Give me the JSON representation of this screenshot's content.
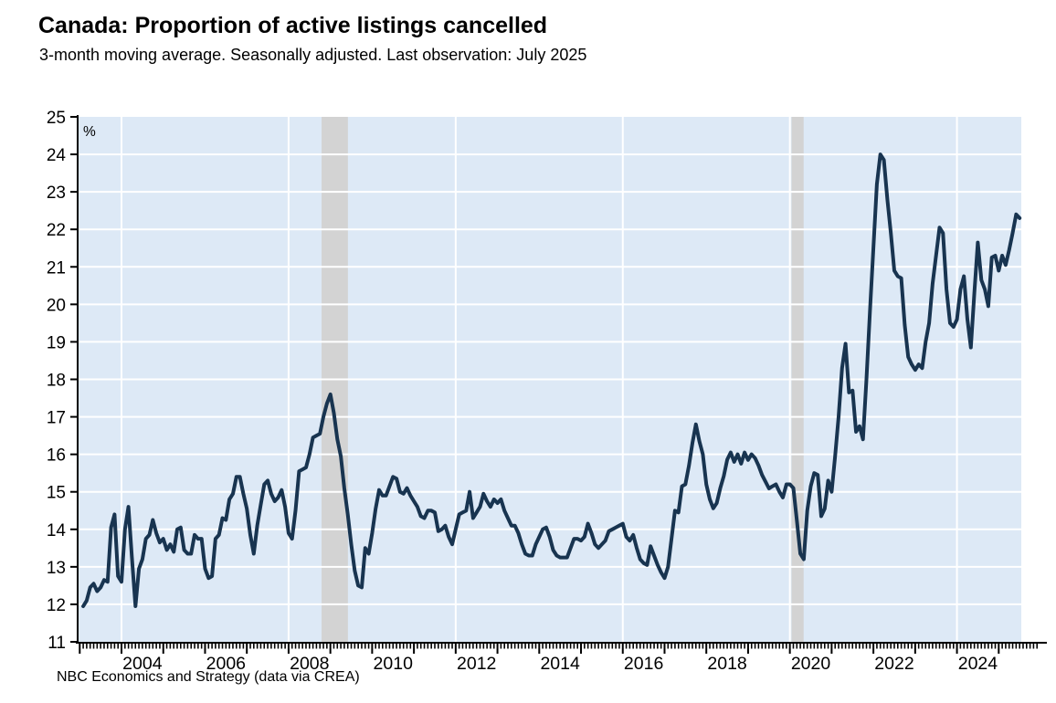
{
  "header": {
    "title": "Canada: Proportion of active listings cancelled",
    "subtitle": "3-month moving average. Seasonally adjusted. Last observation: July 2025"
  },
  "footer": {
    "source": "NBC Economics and Strategy (data via CREA)"
  },
  "chart_data": {
    "type": "line",
    "title": "Canada: Proportion of active listings cancelled",
    "subtitle": "3-month moving average. Seasonally adjusted. Last observation: July 2025",
    "unit_label": "%",
    "ylim": [
      11,
      25
    ],
    "ytick_step": 1,
    "xlim": [
      2002.95,
      2025.54
    ],
    "xtick_label_years": [
      2004,
      2006,
      2008,
      2010,
      2012,
      2014,
      2016,
      2018,
      2020,
      2022,
      2024
    ],
    "vertical_gridline_years": [
      2004,
      2008,
      2012,
      2016,
      2020,
      2024
    ],
    "grid": true,
    "legend_position": "none",
    "recession_bands": [
      {
        "from": 2008.79,
        "to": 2009.42
      },
      {
        "from": 2020.04,
        "to": 2020.33
      }
    ],
    "colors": {
      "line": "#183450",
      "plot_background": "#dde9f6",
      "gridline": "#ffffff",
      "recession_band": "#d3d3d3",
      "axis": "#000000"
    },
    "series": [
      {
        "name": "Proportion of active listings cancelled (3-month moving average, %)",
        "frequency": "monthly",
        "start": {
          "year": 2003,
          "month": 2
        },
        "end": {
          "year": 2025,
          "month": 7
        },
        "values": [
          11.95,
          12.1,
          12.45,
          12.55,
          12.35,
          12.45,
          12.65,
          12.6,
          14.05,
          14.4,
          12.75,
          12.6,
          14.0,
          14.6,
          13.25,
          11.95,
          12.95,
          13.2,
          13.75,
          13.85,
          14.25,
          13.9,
          13.65,
          13.75,
          13.45,
          13.6,
          13.4,
          14.0,
          14.05,
          13.45,
          13.35,
          13.35,
          13.85,
          13.75,
          13.75,
          12.95,
          12.7,
          12.75,
          13.75,
          13.85,
          14.3,
          14.25,
          14.8,
          14.95,
          15.4,
          15.4,
          14.95,
          14.55,
          13.85,
          13.35,
          14.1,
          14.65,
          15.2,
          15.3,
          14.95,
          14.75,
          14.85,
          15.05,
          14.6,
          13.9,
          13.75,
          14.5,
          15.55,
          15.6,
          15.65,
          16.0,
          16.45,
          16.5,
          16.55,
          17.0,
          17.35,
          17.6,
          17.1,
          16.4,
          15.95,
          15.1,
          14.4,
          13.6,
          12.9,
          12.5,
          12.45,
          13.5,
          13.35,
          13.9,
          14.55,
          15.05,
          14.9,
          14.9,
          15.15,
          15.4,
          15.35,
          15.0,
          14.95,
          15.1,
          14.9,
          14.75,
          14.6,
          14.35,
          14.3,
          14.5,
          14.5,
          14.45,
          13.95,
          14.0,
          14.1,
          13.8,
          13.6,
          14.0,
          14.4,
          14.45,
          14.5,
          15.0,
          14.3,
          14.45,
          14.6,
          14.95,
          14.75,
          14.6,
          14.8,
          14.7,
          14.8,
          14.5,
          14.3,
          14.1,
          14.1,
          13.9,
          13.6,
          13.35,
          13.3,
          13.3,
          13.6,
          13.8,
          14.0,
          14.05,
          13.8,
          13.45,
          13.3,
          13.25,
          13.25,
          13.25,
          13.5,
          13.75,
          13.75,
          13.7,
          13.8,
          14.15,
          13.9,
          13.6,
          13.5,
          13.6,
          13.7,
          13.95,
          14.0,
          14.05,
          14.1,
          14.15,
          13.8,
          13.7,
          13.85,
          13.5,
          13.2,
          13.1,
          13.05,
          13.55,
          13.3,
          13.05,
          12.85,
          12.7,
          13.0,
          13.75,
          14.5,
          14.45,
          15.15,
          15.2,
          15.7,
          16.3,
          16.8,
          16.35,
          16.0,
          15.2,
          14.8,
          14.56,
          14.7,
          15.1,
          15.42,
          15.86,
          16.05,
          15.8,
          16.0,
          15.75,
          16.05,
          15.85,
          16.0,
          15.9,
          15.7,
          15.45,
          15.27,
          15.09,
          15.15,
          15.2,
          15.0,
          14.85,
          15.2,
          15.2,
          15.1,
          14.24,
          13.35,
          13.2,
          14.5,
          15.15,
          15.5,
          15.45,
          14.35,
          14.55,
          15.3,
          15.0,
          15.95,
          17.0,
          18.3,
          18.95,
          17.65,
          17.7,
          16.6,
          16.75,
          16.4,
          18.0,
          19.8,
          21.5,
          23.2,
          24.0,
          23.85,
          22.8,
          21.9,
          20.9,
          20.75,
          20.7,
          19.45,
          18.6,
          18.4,
          18.25,
          18.4,
          18.3,
          19.0,
          19.5,
          20.55,
          21.3,
          22.05,
          21.9,
          20.4,
          19.5,
          19.4,
          19.6,
          20.4,
          20.75,
          19.6,
          18.85,
          20.3,
          21.65,
          20.65,
          20.4,
          19.95,
          21.25,
          21.3,
          20.9,
          21.3,
          21.05,
          21.45,
          21.9,
          22.4,
          22.3
        ]
      }
    ],
    "source_note": "NBC Economics and Strategy (data via CREA)"
  }
}
